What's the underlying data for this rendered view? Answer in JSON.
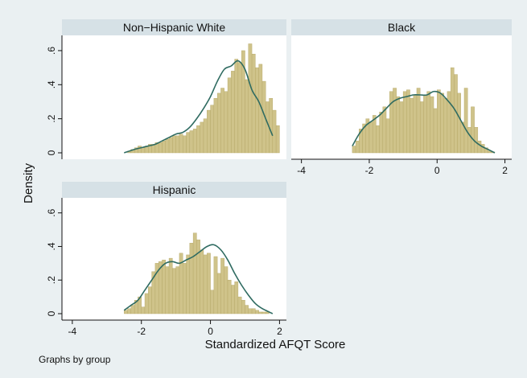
{
  "chart_data": {
    "type": "histogram",
    "ylabel": "Density",
    "xlabel": "Standardized AFQT Score",
    "note": "Graphs by group",
    "xlim": [
      -4.3,
      2.2
    ],
    "ylim": [
      0,
      0.68
    ],
    "x_ticks": [
      "-4",
      "-2",
      "0",
      "2"
    ],
    "x_tick_values": [
      -4,
      -2,
      0,
      2
    ],
    "y_ticks": [
      "0",
      ".2",
      ".4",
      ".6"
    ],
    "y_tick_values": [
      0,
      0.2,
      0.4,
      0.6
    ],
    "bin_width": 0.1,
    "colors": {
      "bar_fill": "#cfc38a",
      "bar_stroke": "#b3a564",
      "density_line": "#2f6b61",
      "plot_bg": "#ffffff",
      "panel_header": "#d6e1e6",
      "background": "#eaf0f2"
    },
    "panels": [
      {
        "name": "Non−Hispanic White",
        "bin_start": -2.4,
        "values": [
          0.01,
          0.02,
          0.03,
          0.04,
          0.03,
          0.04,
          0.05,
          0.05,
          0.06,
          0.06,
          0.07,
          0.08,
          0.09,
          0.1,
          0.1,
          0.11,
          0.1,
          0.12,
          0.13,
          0.14,
          0.16,
          0.18,
          0.2,
          0.25,
          0.28,
          0.32,
          0.35,
          0.38,
          0.36,
          0.44,
          0.48,
          0.55,
          0.53,
          0.6,
          0.43,
          0.64,
          0.58,
          0.5,
          0.52,
          0.42,
          0.3,
          0.32,
          0.25,
          0.16
        ],
        "density_x": [
          -2.5,
          -2.2,
          -2.0,
          -1.8,
          -1.6,
          -1.4,
          -1.2,
          -1.0,
          -0.8,
          -0.6,
          -0.4,
          -0.2,
          0.0,
          0.2,
          0.4,
          0.6,
          0.8,
          1.0,
          1.2,
          1.4,
          1.6,
          1.8
        ],
        "density_y": [
          0.0,
          0.02,
          0.03,
          0.04,
          0.05,
          0.07,
          0.09,
          0.11,
          0.12,
          0.15,
          0.2,
          0.26,
          0.33,
          0.42,
          0.49,
          0.51,
          0.54,
          0.49,
          0.37,
          0.3,
          0.2,
          0.1
        ]
      },
      {
        "name": "Black",
        "bin_start": -2.5,
        "values": [
          0.04,
          0.07,
          0.14,
          0.17,
          0.2,
          0.18,
          0.22,
          0.16,
          0.24,
          0.27,
          0.2,
          0.36,
          0.38,
          0.33,
          0.3,
          0.36,
          0.37,
          0.32,
          0.34,
          0.38,
          0.3,
          0.34,
          0.36,
          0.33,
          0.26,
          0.37,
          0.35,
          0.32,
          0.36,
          0.5,
          0.46,
          0.35,
          0.18,
          0.38,
          0.15,
          0.27,
          0.15,
          0.07,
          0.05,
          0.03,
          0.01,
          0.005
        ],
        "density_x": [
          -2.5,
          -2.3,
          -2.1,
          -1.9,
          -1.7,
          -1.5,
          -1.3,
          -1.1,
          -0.9,
          -0.7,
          -0.5,
          -0.3,
          -0.1,
          0.1,
          0.3,
          0.5,
          0.7,
          0.9,
          1.1,
          1.3,
          1.5,
          1.7
        ],
        "density_y": [
          0.04,
          0.11,
          0.16,
          0.19,
          0.22,
          0.26,
          0.3,
          0.32,
          0.33,
          0.34,
          0.34,
          0.34,
          0.36,
          0.35,
          0.31,
          0.26,
          0.19,
          0.12,
          0.07,
          0.04,
          0.02,
          0.0
        ]
      },
      {
        "name": "Hispanic",
        "bin_start": -2.5,
        "values": [
          0.02,
          0.03,
          0.05,
          0.08,
          0.1,
          0.04,
          0.12,
          0.16,
          0.25,
          0.3,
          0.31,
          0.32,
          0.28,
          0.33,
          0.27,
          0.28,
          0.36,
          0.3,
          0.35,
          0.42,
          0.48,
          0.44,
          0.38,
          0.35,
          0.36,
          0.14,
          0.34,
          0.24,
          0.33,
          0.28,
          0.2,
          0.17,
          0.19,
          0.1,
          0.08,
          0.05,
          0.03,
          0.03,
          0.02,
          0.01,
          0.01,
          0.01
        ],
        "density_x": [
          -2.5,
          -2.3,
          -2.1,
          -1.9,
          -1.7,
          -1.5,
          -1.3,
          -1.1,
          -0.9,
          -0.7,
          -0.5,
          -0.3,
          -0.1,
          0.1,
          0.3,
          0.5,
          0.7,
          0.9,
          1.1,
          1.3,
          1.5,
          1.7,
          1.8
        ],
        "density_y": [
          0.02,
          0.05,
          0.08,
          0.14,
          0.2,
          0.26,
          0.3,
          0.31,
          0.3,
          0.32,
          0.34,
          0.37,
          0.4,
          0.41,
          0.38,
          0.32,
          0.24,
          0.17,
          0.11,
          0.06,
          0.03,
          0.01,
          0.0
        ]
      }
    ]
  }
}
